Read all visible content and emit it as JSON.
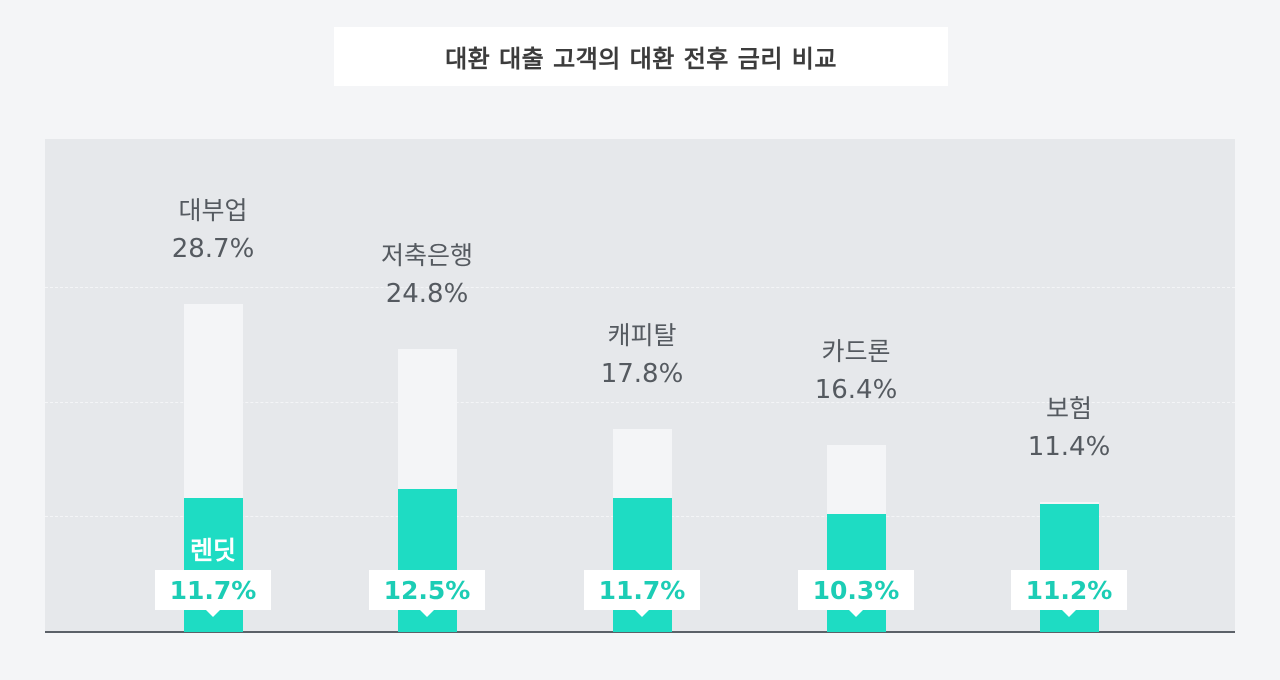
{
  "chart_data": {
    "type": "bar",
    "title": "대환 대출 고객의 대환 전후 금리 비교",
    "categories": [
      "대부업",
      "저축은행",
      "캐피탈",
      "카드론",
      "보험"
    ],
    "series": [
      {
        "values": [
          28.7,
          24.8,
          17.8,
          16.4,
          11.4
        ]
      },
      {
        "name": "렌딧",
        "values": [
          11.7,
          12.5,
          11.7,
          10.3,
          11.2
        ]
      }
    ],
    "before_labels": [
      "28.7%",
      "24.8%",
      "17.8%",
      "16.4%",
      "11.4%"
    ],
    "after_labels": [
      "11.7%",
      "12.5%",
      "11.7%",
      "10.3%",
      "11.2%"
    ],
    "xlabel": "",
    "ylabel": "",
    "ylim": [
      0,
      35
    ],
    "grid": true,
    "colors": {
      "before": "#f4f5f7",
      "after": "#1edcc3",
      "after_text": "#1ccdb5",
      "plot_background": "#e6e8eb",
      "axis": "#5b6168",
      "text": "#555a60"
    }
  }
}
